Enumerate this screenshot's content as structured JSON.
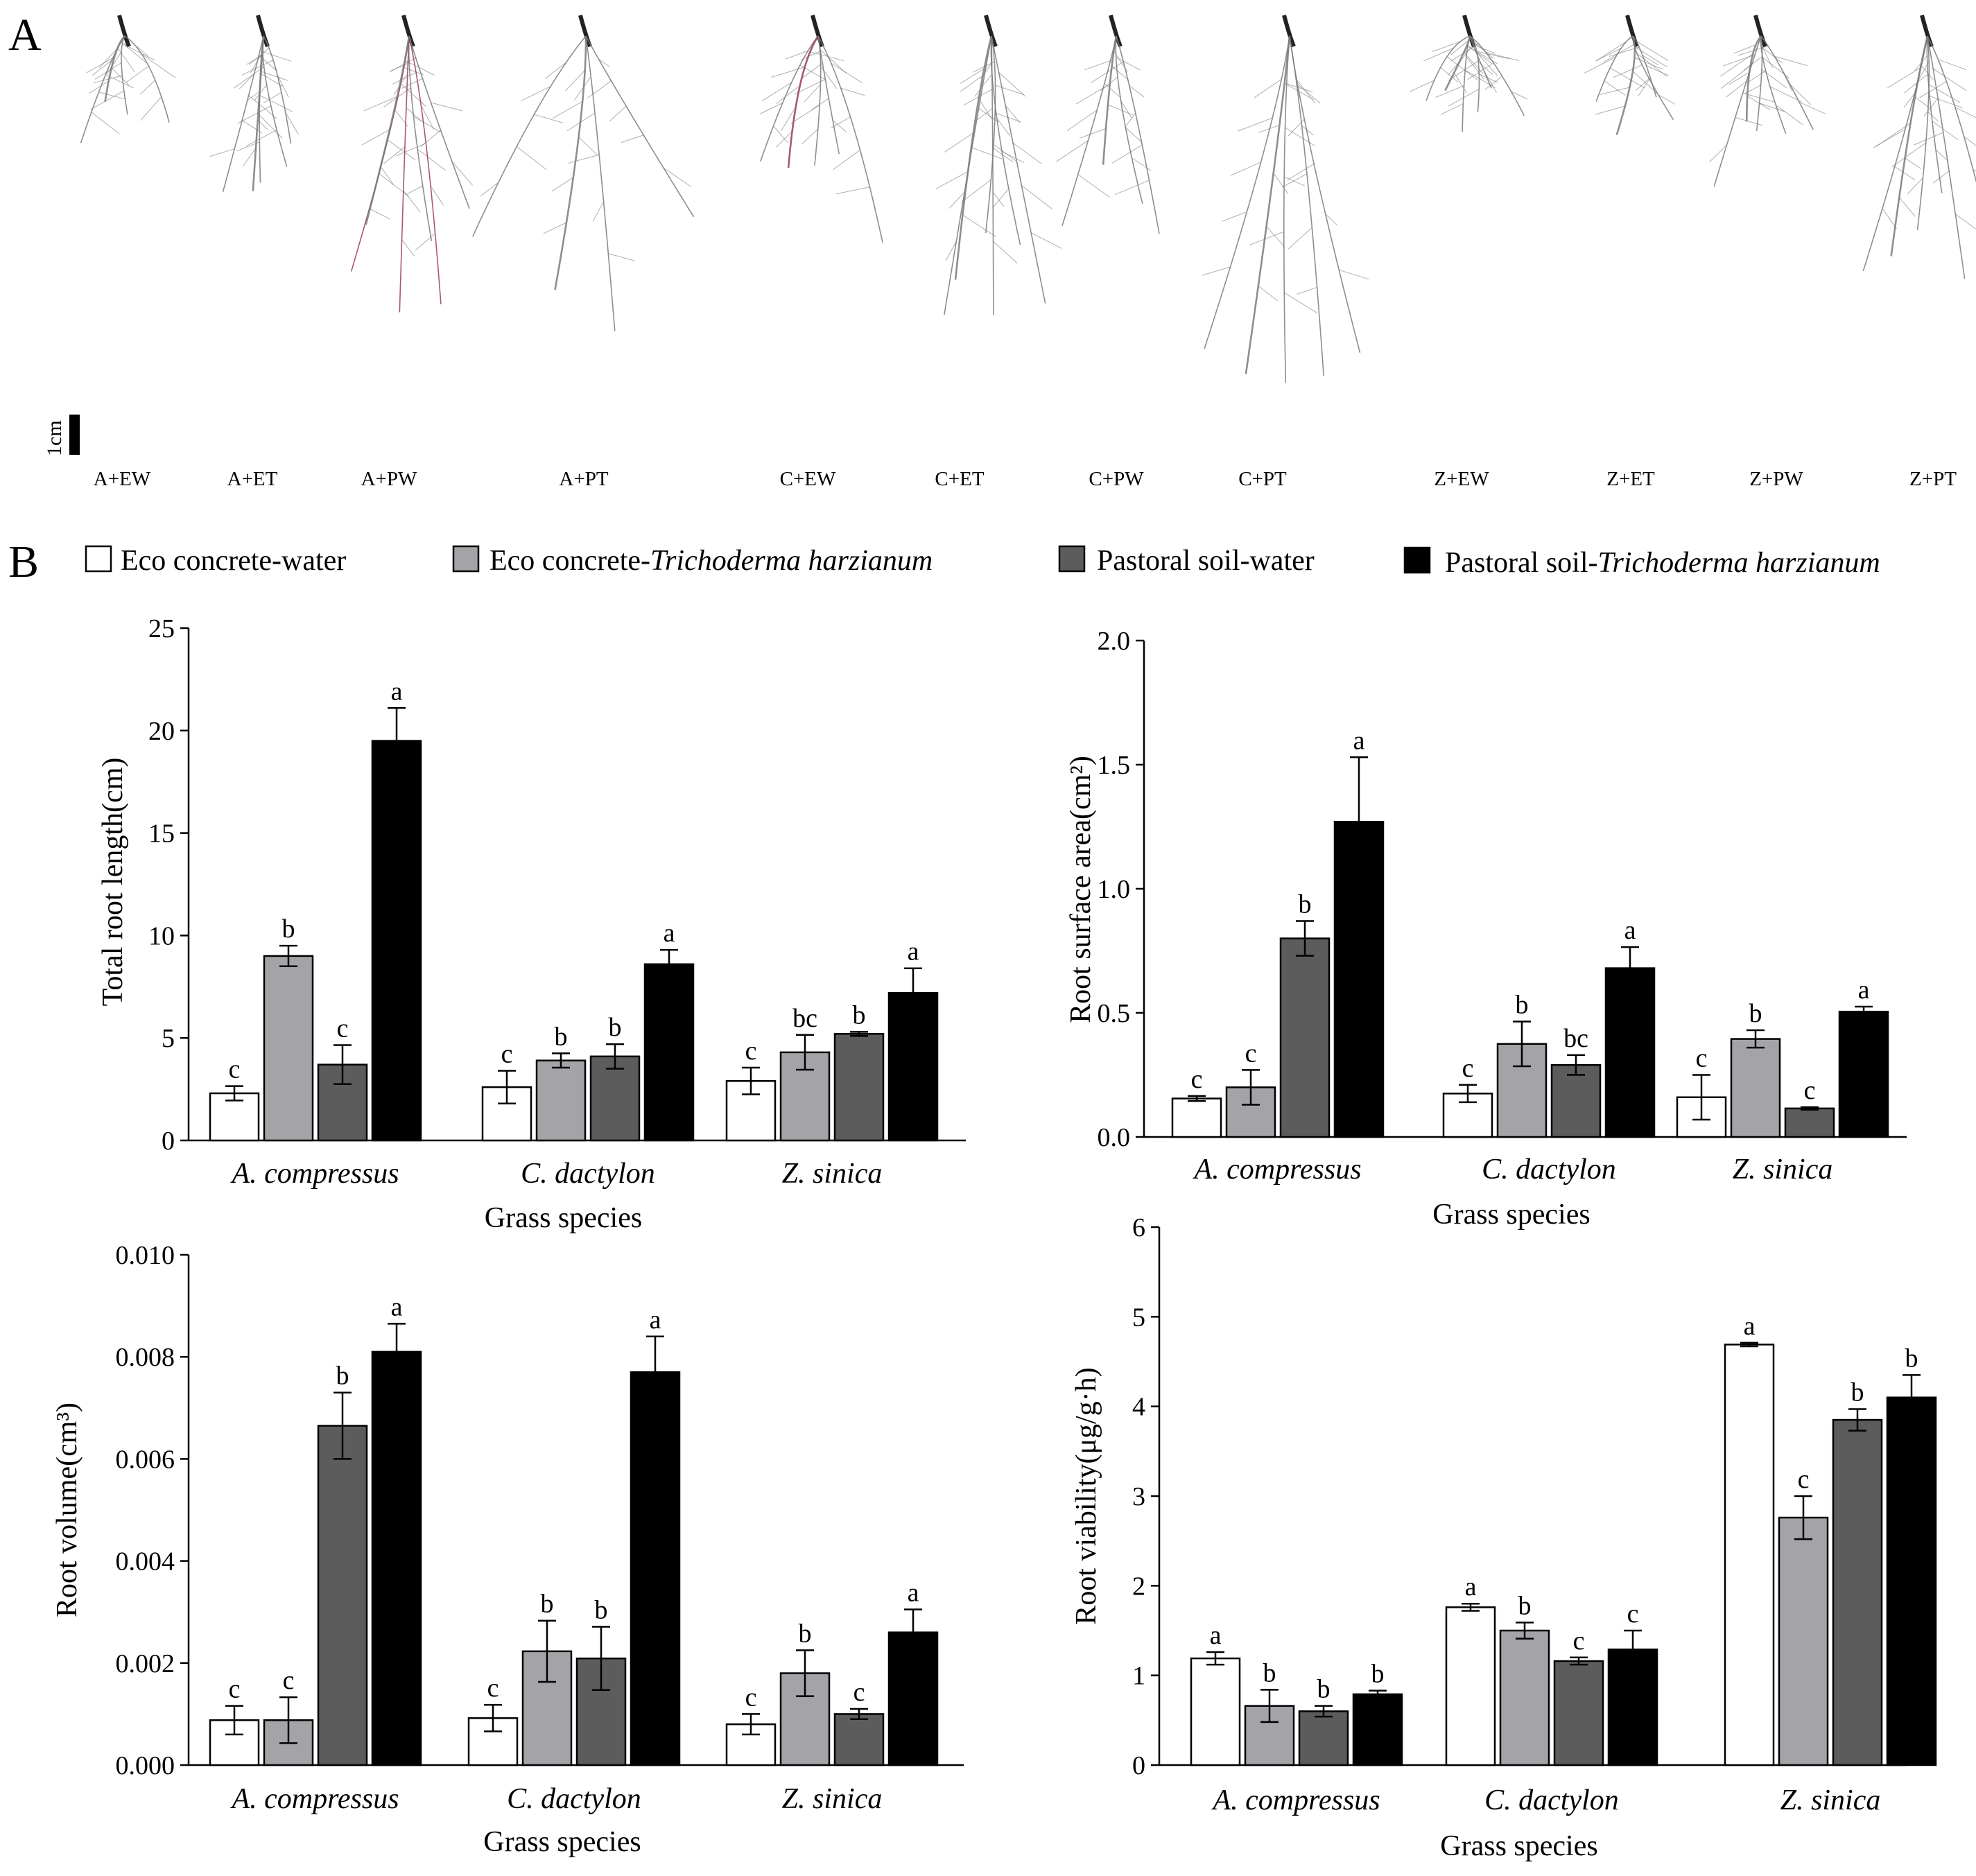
{
  "panel_a": {
    "label": "A",
    "scale_bar_label": "1cm",
    "samples": [
      "A+EW",
      "A+ET",
      "A+PW",
      "A+PT",
      "C+EW",
      "C+ET",
      "C+PW",
      "C+PT",
      "Z+EW",
      "Z+ET",
      "Z+PW",
      "Z+PT"
    ]
  },
  "panel_b": {
    "label": "B",
    "legend": [
      {
        "plain": "Eco concrete-water",
        "italic": "",
        "color": "#ffffff"
      },
      {
        "plain": "Eco concrete-",
        "italic": "Trichoderma harzianum",
        "color": "#a4a4a8"
      },
      {
        "plain": "Pastoral soil-water",
        "italic": "",
        "color": "#5c5c5c"
      },
      {
        "plain": "Pastoral soil-",
        "italic": "Trichoderma harzianum",
        "color": "#000000"
      }
    ]
  },
  "colors": {
    "eco_water": "#ffffff",
    "eco_trichoderma": "#a4a4a8",
    "pastoral_water": "#5c5c5c",
    "pastoral_trichoderma": "#000000",
    "root_stroke": "#7a7a7a",
    "root_accent": "#9a3a5a"
  },
  "chart_data": [
    {
      "type": "bar",
      "title": "",
      "xlabel": "Grass species",
      "ylabel": "Total root length(cm)",
      "categories": [
        "A. compressus",
        "C. dactylon",
        "Z. sinica"
      ],
      "ylim": [
        0,
        25
      ],
      "yticks": [
        "0",
        "5",
        "10",
        "15",
        "20",
        "25"
      ],
      "series": [
        {
          "name": "Eco concrete-water",
          "values": [
            2.3,
            2.6,
            2.9
          ],
          "errors": [
            0.35,
            0.8,
            0.65
          ],
          "letters": [
            "c",
            "c",
            "c"
          ]
        },
        {
          "name": "Eco concrete-Trichoderma harzianum",
          "values": [
            9.0,
            3.9,
            4.3
          ],
          "errors": [
            0.5,
            0.35,
            0.85
          ],
          "letters": [
            "b",
            "b",
            "bc"
          ]
        },
        {
          "name": "Pastoral soil-water",
          "values": [
            3.7,
            4.1,
            5.2
          ],
          "errors": [
            0.95,
            0.6,
            0.1
          ],
          "letters": [
            "c",
            "b",
            "b"
          ]
        },
        {
          "name": "Pastoral soil-Trichoderma harzianum",
          "values": [
            19.5,
            8.6,
            7.2
          ],
          "errors": [
            1.6,
            0.7,
            1.2
          ],
          "letters": [
            "a",
            "a",
            "a"
          ]
        }
      ]
    },
    {
      "type": "bar",
      "title": "",
      "xlabel": "Grass species",
      "ylabel": "Root surface area(cm²)",
      "categories": [
        "A. compressus",
        "C. dactylon",
        "Z. sinica"
      ],
      "ylim": [
        0,
        2.0
      ],
      "yticks": [
        "0.0",
        "0.5",
        "1.0",
        "1.5",
        "2.0"
      ],
      "series": [
        {
          "name": "Eco concrete-water",
          "values": [
            0.155,
            0.175,
            0.16
          ],
          "errors": [
            0.01,
            0.035,
            0.09
          ],
          "letters": [
            "c",
            "c",
            "c"
          ]
        },
        {
          "name": "Eco concrete-Trichoderma harzianum",
          "values": [
            0.2,
            0.375,
            0.395
          ],
          "errors": [
            0.07,
            0.09,
            0.035
          ],
          "letters": [
            "c",
            "b",
            "b"
          ]
        },
        {
          "name": "Pastoral soil-water",
          "values": [
            0.8,
            0.29,
            0.115
          ],
          "errors": [
            0.07,
            0.04,
            0.005
          ],
          "letters": [
            "b",
            "bc",
            "c"
          ]
        },
        {
          "name": "Pastoral soil-Trichoderma harzianum",
          "values": [
            1.27,
            0.68,
            0.505
          ],
          "errors": [
            0.26,
            0.085,
            0.02
          ],
          "letters": [
            "a",
            "a",
            "a"
          ]
        }
      ]
    },
    {
      "type": "bar",
      "title": "",
      "xlabel": "Grass species",
      "ylabel": "Root volume(cm³)",
      "categories": [
        "A. compressus",
        "C. dactylon",
        "Z. sinica"
      ],
      "ylim": [
        0,
        0.01
      ],
      "yticks": [
        "0.000",
        "0.002",
        "0.004",
        "0.006",
        "0.008",
        "0.010"
      ],
      "series": [
        {
          "name": "Eco concrete-water",
          "values": [
            0.00088,
            0.00092,
            0.0008
          ],
          "errors": [
            0.00028,
            0.00026,
            0.0002
          ],
          "letters": [
            "c",
            "c",
            "c"
          ]
        },
        {
          "name": "Eco concrete-Trichoderma harzianum",
          "values": [
            0.00088,
            0.00223,
            0.0018
          ],
          "errors": [
            0.00045,
            0.0006,
            0.00045
          ],
          "letters": [
            "c",
            "b",
            "b"
          ]
        },
        {
          "name": "Pastoral soil-water",
          "values": [
            0.00665,
            0.00209,
            0.001
          ],
          "errors": [
            0.00065,
            0.00062,
            0.0001
          ],
          "letters": [
            "b",
            "b",
            "c"
          ]
        },
        {
          "name": "Pastoral soil-Trichoderma harzianum",
          "values": [
            0.0081,
            0.0077,
            0.0026
          ],
          "errors": [
            0.00055,
            0.0007,
            0.00045
          ],
          "letters": [
            "a",
            "a",
            "a"
          ]
        }
      ]
    },
    {
      "type": "bar",
      "title": "",
      "xlabel": "Grass species",
      "ylabel": "Root viability(μg/g·h)",
      "categories": [
        "A. compressus",
        "C. dactylon",
        "Z. sinica"
      ],
      "ylim": [
        0,
        6
      ],
      "yticks": [
        "0",
        "1",
        "2",
        "3",
        "4",
        "5",
        "6"
      ],
      "series": [
        {
          "name": "Eco concrete-water",
          "values": [
            1.19,
            1.76,
            4.69
          ],
          "errors": [
            0.07,
            0.04,
            0.02
          ],
          "letters": [
            "a",
            "a",
            "a"
          ]
        },
        {
          "name": "Eco concrete-Trichoderma harzianum",
          "values": [
            0.66,
            1.5,
            2.76
          ],
          "errors": [
            0.18,
            0.09,
            0.24
          ],
          "letters": [
            "b",
            "b",
            "c"
          ]
        },
        {
          "name": "Pastoral soil-water",
          "values": [
            0.6,
            1.16,
            3.85
          ],
          "errors": [
            0.06,
            0.04,
            0.12
          ],
          "letters": [
            "b",
            "c",
            "b"
          ]
        },
        {
          "name": "Pastoral soil-Trichoderma harzianum",
          "values": [
            0.79,
            1.29,
            4.1
          ],
          "errors": [
            0.04,
            0.21,
            0.25
          ],
          "letters": [
            "b",
            "c",
            "b"
          ]
        }
      ]
    }
  ]
}
